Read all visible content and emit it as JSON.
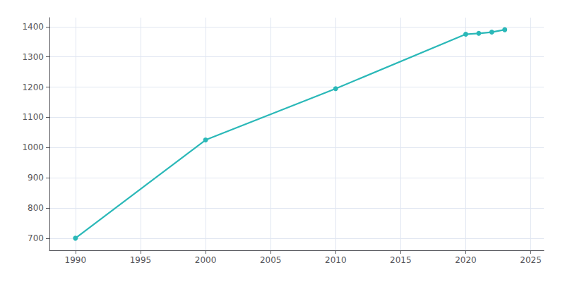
{
  "chart_data": {
    "type": "line",
    "x": [
      1990,
      2000,
      2010,
      2020,
      2021,
      2022,
      2023
    ],
    "values": [
      700,
      1025,
      1195,
      1375,
      1378,
      1382,
      1390
    ],
    "color": "#2ab8b8",
    "marker": "circle",
    "xlim": [
      1988,
      2026
    ],
    "ylim": [
      660,
      1430
    ],
    "xticks": [
      1990,
      1995,
      2000,
      2005,
      2010,
      2015,
      2020,
      2025
    ],
    "yticks": [
      700,
      800,
      900,
      1000,
      1100,
      1200,
      1300,
      1400
    ],
    "grid": true
  }
}
